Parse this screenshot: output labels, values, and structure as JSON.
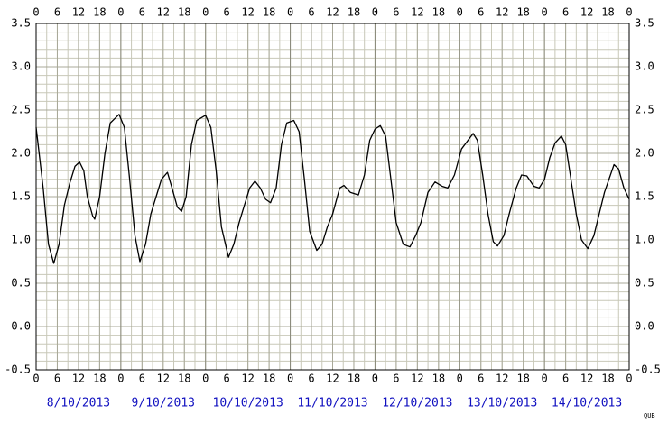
{
  "chart_data": {
    "type": "line",
    "x": [
      0,
      2,
      3.5,
      5,
      6.5,
      8,
      9.5,
      11,
      12.3,
      13.5,
      14.5,
      16,
      16.6,
      18,
      19.5,
      21,
      23.5,
      25,
      26.5,
      28,
      29.4,
      31,
      32.5,
      34,
      35.5,
      37.2,
      38.5,
      40,
      41.2,
      42.5,
      44,
      45.5,
      48,
      49.5,
      51,
      52.5,
      54.5,
      56,
      57.5,
      59,
      60.5,
      62,
      63.5,
      65,
      66.4,
      68,
      69.5,
      71,
      73,
      74.5,
      76,
      77.5,
      79.5,
      81,
      82.5,
      84,
      86,
      87.2,
      89,
      91.3,
      93,
      94.5,
      96,
      97.5,
      99,
      100.5,
      102,
      104,
      105.9,
      107.5,
      109,
      111,
      113,
      115,
      116.6,
      118.5,
      120.5,
      123.8,
      125,
      126.5,
      128,
      129.5,
      130.7,
      132.5,
      134,
      136,
      137.5,
      139,
      141,
      142.5,
      144,
      145.5,
      147,
      148.8,
      150,
      151.5,
      153,
      154.5,
      156.3,
      158,
      159.5,
      161,
      163.7,
      165,
      166.5,
      168
    ],
    "values": [
      2.3,
      1.6,
      0.95,
      0.73,
      0.95,
      1.4,
      1.65,
      1.85,
      1.9,
      1.8,
      1.5,
      1.28,
      1.24,
      1.5,
      2.0,
      2.35,
      2.45,
      2.3,
      1.7,
      1.05,
      0.75,
      0.95,
      1.3,
      1.5,
      1.7,
      1.78,
      1.6,
      1.38,
      1.33,
      1.5,
      2.1,
      2.38,
      2.44,
      2.3,
      1.8,
      1.15,
      0.8,
      0.95,
      1.2,
      1.4,
      1.6,
      1.68,
      1.6,
      1.47,
      1.43,
      1.6,
      2.1,
      2.35,
      2.38,
      2.25,
      1.7,
      1.1,
      0.88,
      0.95,
      1.15,
      1.3,
      1.6,
      1.63,
      1.55,
      1.52,
      1.75,
      2.15,
      2.28,
      2.32,
      2.2,
      1.7,
      1.2,
      0.95,
      0.92,
      1.05,
      1.2,
      1.55,
      1.67,
      1.62,
      1.6,
      1.75,
      2.05,
      2.23,
      2.15,
      1.75,
      1.3,
      0.98,
      0.93,
      1.05,
      1.3,
      1.6,
      1.75,
      1.74,
      1.62,
      1.6,
      1.7,
      1.95,
      2.12,
      2.2,
      2.1,
      1.7,
      1.3,
      1.0,
      0.9,
      1.05,
      1.3,
      1.55,
      1.87,
      1.82,
      1.6,
      1.47
    ],
    "color": "#000000",
    "xlim": [
      0,
      168
    ],
    "xticks": [
      0,
      6,
      12,
      18,
      {
        "value": 24,
        "label": "0"
      },
      {
        "value": 30,
        "label": "6"
      },
      {
        "value": 36,
        "label": "12"
      },
      {
        "value": 42,
        "label": "18"
      },
      {
        "value": 48,
        "label": "0"
      },
      {
        "value": 54,
        "label": "6"
      },
      {
        "value": 60,
        "label": "12"
      },
      {
        "value": 66,
        "label": "18"
      },
      {
        "value": 72,
        "label": "0"
      },
      {
        "value": 78,
        "label": "6"
      },
      {
        "value": 84,
        "label": "12"
      },
      {
        "value": 90,
        "label": "18"
      },
      {
        "value": 96,
        "label": "0"
      },
      {
        "value": 102,
        "label": "6"
      },
      {
        "value": 108,
        "label": "12"
      },
      {
        "value": 114,
        "label": "18"
      },
      {
        "value": 120,
        "label": "0"
      },
      {
        "value": 126,
        "label": "6"
      },
      {
        "value": 132,
        "label": "12"
      },
      {
        "value": 138,
        "label": "18"
      },
      {
        "value": 144,
        "label": "0"
      },
      {
        "value": 150,
        "label": "6"
      },
      {
        "value": 156,
        "label": "12"
      },
      {
        "value": 162,
        "label": "18"
      },
      {
        "value": 168,
        "label": "0"
      }
    ],
    "ylim": [
      -0.5,
      3.5
    ],
    "yticks": [
      -0.5,
      {
        "value": 0,
        "label": "0.0"
      },
      0.5,
      {
        "value": 1,
        "label": "1.0"
      },
      1.5,
      {
        "value": 2,
        "label": "2.0"
      },
      2.5,
      {
        "value": 3,
        "label": "3.0"
      },
      3.5
    ],
    "dates": [
      "8/10/2013",
      "9/10/2013",
      "10/10/2013",
      "11/10/2013",
      "12/10/2013",
      "13/10/2013",
      "14/10/2013"
    ],
    "credit": "QUB",
    "grid": true
  }
}
